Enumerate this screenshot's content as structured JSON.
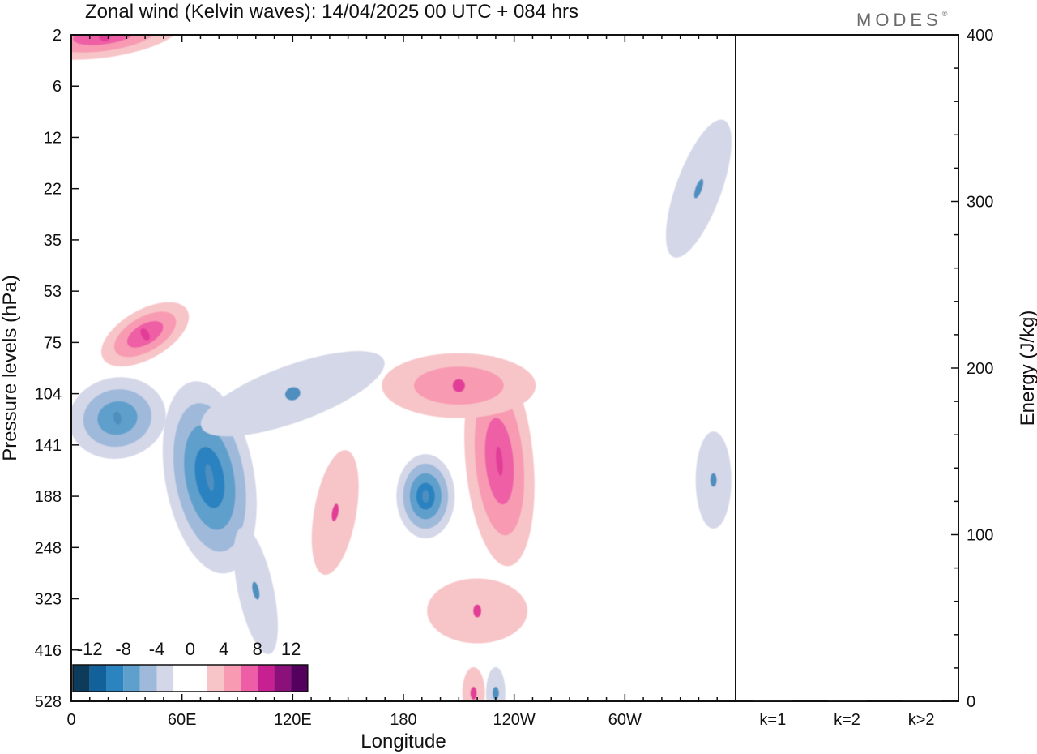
{
  "title": "Zonal wind (Kelvin waves):  14/04/2025  00 UTC  + 084 hrs",
  "brand": "MODES",
  "brand_mark": "®",
  "colors": {
    "neg": [
      "#0d3b5c",
      "#12619a",
      "#2b83c0",
      "#5f9fcb",
      "#9fb9db",
      "#d4d7e8"
    ],
    "neg_core": "#4f8fbf",
    "pos": [
      "#f7c5c7",
      "#f79ab2",
      "#ee5ea6",
      "#c72090",
      "#8b1079",
      "#54005f"
    ],
    "pos_core": "#e23c97",
    "zero": "#ffffff"
  },
  "chart_data": [
    {
      "type": "heatmap",
      "title": "Zonal wind (Kelvin waves):  14/04/2025  00 UTC  + 084 hrs",
      "xlabel": "Longitude",
      "ylabel": "Pressure levels (hPa)",
      "x_ticks": [
        "0",
        "60E",
        "120E",
        "180",
        "120W",
        "60W"
      ],
      "x_tick_degrees": [
        0,
        60,
        120,
        180,
        240,
        300
      ],
      "x_range_degrees": [
        0,
        360
      ],
      "y_ticks": [
        "2",
        "6",
        "12",
        "22",
        "35",
        "53",
        "75",
        "104",
        "141",
        "188",
        "248",
        "323",
        "416",
        "528"
      ],
      "colorbar": {
        "labels": [
          "-12",
          "-8",
          "-4",
          "0",
          "4",
          "8",
          "12"
        ],
        "bounds": [
          -14,
          -12,
          -10,
          -8,
          -6,
          -4,
          -2,
          2,
          4,
          6,
          8,
          10,
          12,
          14
        ]
      },
      "features": [
        {
          "lon": 18,
          "level": 2,
          "value": 6
        },
        {
          "lon": 40,
          "level": 75,
          "value": 6
        },
        {
          "lon": 25,
          "level": 104,
          "value": -6
        },
        {
          "lon": 75,
          "level": 141,
          "value": -8
        },
        {
          "lon": 120,
          "level": 104,
          "value": -2
        },
        {
          "lon": 192,
          "level": 188,
          "value": -8
        },
        {
          "lon": 232,
          "level": 141,
          "value": 6
        },
        {
          "lon": 210,
          "level": 104,
          "value": 4
        },
        {
          "lon": 143,
          "level": 188,
          "value": 2
        },
        {
          "lon": 220,
          "level": 323,
          "value": 2
        },
        {
          "lon": 340,
          "level": 22,
          "value": -2
        },
        {
          "lon": 348,
          "level": 188,
          "value": -2
        },
        {
          "lon": 218,
          "level": 528,
          "value": 2
        },
        {
          "lon": 230,
          "level": 528,
          "value": -2
        },
        {
          "lon": 100,
          "level": 323,
          "value": -2
        }
      ]
    },
    {
      "type": "bar",
      "categories": [
        "k=1",
        "k=2",
        "k>2"
      ],
      "values": [
        0.5,
        0,
        0.5
      ],
      "ylabel": "Energy (J/kg)",
      "ylim": [
        0,
        400
      ],
      "y_ticks": [
        "0",
        "100",
        "200",
        "300",
        "400"
      ]
    }
  ]
}
